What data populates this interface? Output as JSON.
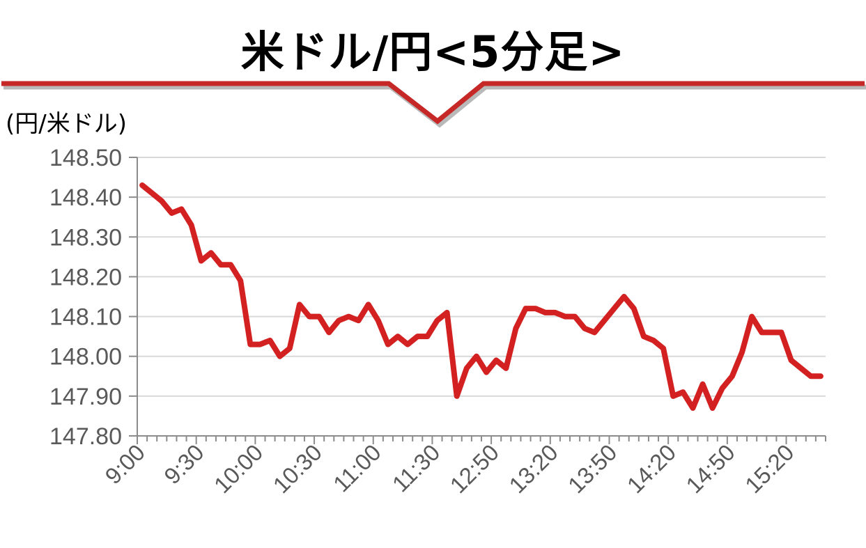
{
  "header": {
    "title": "米ドル/円<5分足>",
    "accent_color": "#c62828"
  },
  "chart_data": {
    "type": "line",
    "title": "米ドル/円<5分足>",
    "ylabel": "(円/米ドル)",
    "xlabel": "",
    "ylim": [
      147.8,
      148.5
    ],
    "y_ticks": [
      "148.50",
      "148.40",
      "148.30",
      "148.20",
      "148.10",
      "148.00",
      "147.90",
      "147.80"
    ],
    "x_tick_labels": [
      "9:00",
      "9:30",
      "10:00",
      "10:30",
      "11:00",
      "11:30",
      "12:50",
      "13:20",
      "13:50",
      "14:20",
      "14:50",
      "15:20"
    ],
    "grid": true,
    "line_color": "#d32020",
    "series": [
      {
        "values": [
          148.43,
          148.41,
          148.39,
          148.36,
          148.37,
          148.33,
          148.24,
          148.26,
          148.23,
          148.23,
          148.19,
          148.03,
          148.03,
          148.04,
          148.0,
          148.02,
          148.13,
          148.1,
          148.1,
          148.06,
          148.09,
          148.1,
          148.09,
          148.13,
          148.09,
          148.03,
          148.05,
          148.03,
          148.05,
          148.05,
          148.09,
          148.11,
          147.9,
          147.97,
          148.0,
          147.96,
          147.99,
          147.97,
          148.07,
          148.12,
          148.12,
          148.11,
          148.11,
          148.1,
          148.1,
          148.07,
          148.06,
          148.09,
          148.12,
          148.15,
          148.12,
          148.05,
          148.04,
          148.02,
          147.9,
          147.91,
          147.87,
          147.93,
          147.87,
          147.92,
          147.95,
          148.01,
          148.1,
          148.06,
          148.06,
          148.06,
          147.99,
          147.97,
          147.95,
          147.95
        ]
      }
    ]
  }
}
